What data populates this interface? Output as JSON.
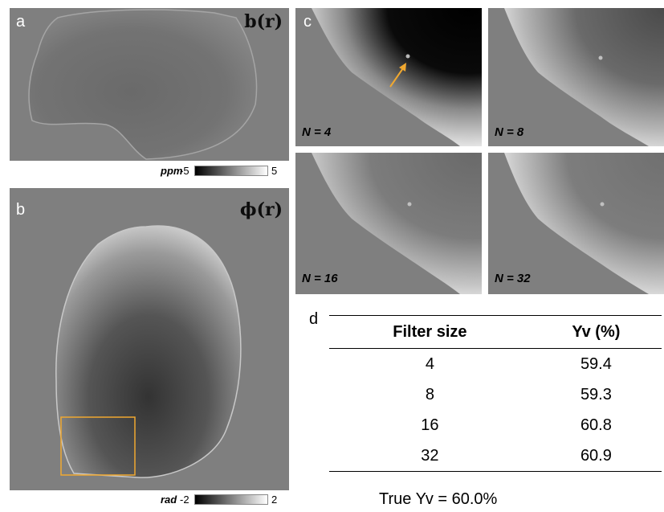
{
  "panel_a": {
    "label": "a",
    "title": "b(r)",
    "colorbar": {
      "unit": "ppm",
      "min": "-5",
      "max": "5"
    }
  },
  "panel_b": {
    "label": "b",
    "title": "ϕ(r)",
    "colorbar": {
      "unit": "rad",
      "min": "-2",
      "max": "2"
    }
  },
  "panel_c": {
    "label": "c",
    "subpanels": [
      "N = 4",
      "N = 8",
      "N = 16",
      "N = 32"
    ],
    "arrow_color": "#f0a830"
  },
  "panel_d": {
    "label": "d",
    "headers": [
      "Filter size",
      "Yv (%)"
    ],
    "rows": [
      [
        "4",
        "59.4"
      ],
      [
        "8",
        "59.3"
      ],
      [
        "16",
        "60.8"
      ],
      [
        "32",
        "60.9"
      ]
    ],
    "footer": "True Yv = 60.0%"
  },
  "colors": {
    "background_gray": "#7f7f7f",
    "highlight_box": "#f0a830"
  }
}
